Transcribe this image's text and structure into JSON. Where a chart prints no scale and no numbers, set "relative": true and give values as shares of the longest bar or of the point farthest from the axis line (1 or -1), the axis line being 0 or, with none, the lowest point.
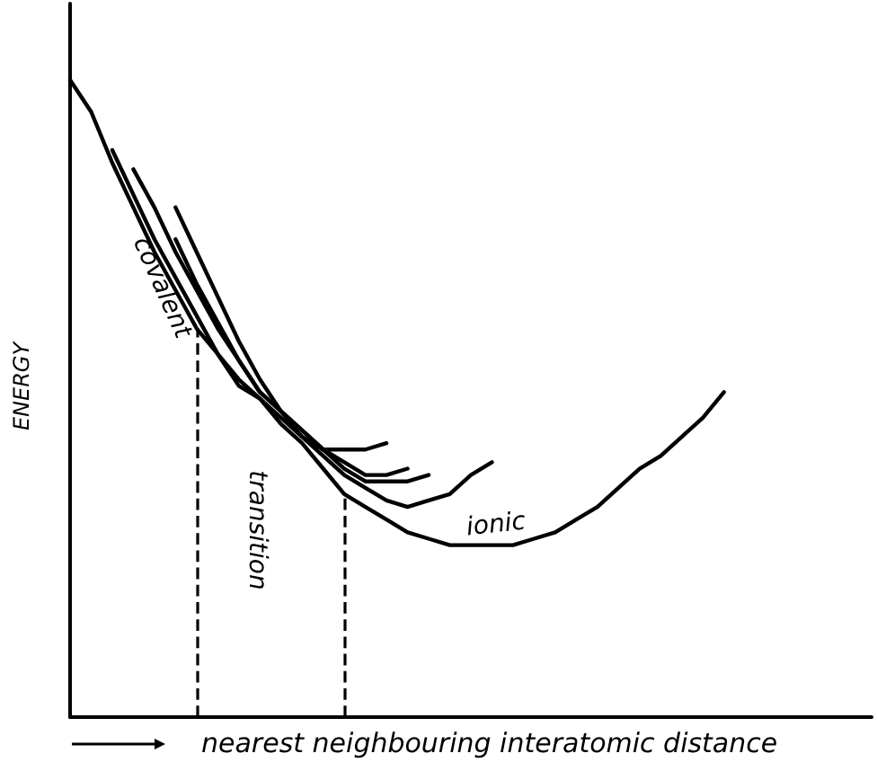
{
  "chart_data": {
    "type": "line",
    "relative": true,
    "xlabel": "nearest neighbouring interatomic distance",
    "ylabel": "ENERGY",
    "categories": [
      null,
      null,
      null,
      null,
      null,
      null,
      null,
      null,
      null,
      null,
      null,
      null,
      null,
      null,
      null,
      null,
      null,
      null,
      null,
      null,
      null,
      null,
      null,
      null,
      null,
      null,
      null,
      null,
      null,
      null,
      null,
      null,
      null,
      null,
      null,
      null,
      null,
      null,
      null
    ],
    "series": [
      {
        "color": "#000000",
        "values": [
          1.0,
          0.95,
          0.87,
          0.8,
          0.73,
          0.67,
          0.61,
          0.57,
          0.53,
          0.5,
          0.46,
          0.43,
          0.39,
          0.35,
          0.33,
          0.31,
          0.29,
          0.28,
          0.27,
          0.27,
          0.27,
          0.27,
          0.28,
          0.29,
          0.31,
          0.33,
          0.36,
          0.39,
          0.41,
          0.44,
          0.47,
          0.51,
          null,
          null,
          null,
          null,
          null,
          null,
          null
        ]
      },
      {
        "color": "#000000",
        "values": [
          null,
          null,
          0.89,
          0.82,
          0.75,
          0.69,
          0.63,
          0.57,
          0.52,
          0.5,
          0.47,
          0.44,
          0.41,
          0.38,
          0.36,
          0.34,
          0.33,
          0.34,
          0.35,
          0.38,
          0.4,
          null,
          null,
          null,
          null,
          null,
          null,
          null,
          null,
          null,
          null,
          null,
          null,
          null,
          null,
          null,
          null,
          null,
          null
        ]
      },
      {
        "color": "#000000",
        "values": [
          null,
          null,
          null,
          0.86,
          0.8,
          0.73,
          0.67,
          0.61,
          0.56,
          0.51,
          0.48,
          0.45,
          0.42,
          0.39,
          0.37,
          0.37,
          0.37,
          0.38,
          null,
          null,
          null,
          null,
          null,
          null,
          null,
          null,
          null,
          null,
          null,
          null,
          null,
          null,
          null,
          null,
          null,
          null,
          null,
          null,
          null
        ]
      },
      {
        "color": "#000000",
        "values": [
          null,
          null,
          null,
          null,
          null,
          0.75,
          0.68,
          0.62,
          0.56,
          0.51,
          0.48,
          0.44,
          0.42,
          0.4,
          0.38,
          0.38,
          0.39,
          null,
          null,
          null,
          null,
          null,
          null,
          null,
          null,
          null,
          null,
          null,
          null,
          null,
          null,
          null,
          null,
          null,
          null,
          null,
          null,
          null,
          null
        ]
      },
      {
        "color": "#000000",
        "values": [
          null,
          null,
          null,
          null,
          null,
          0.8,
          0.73,
          0.66,
          0.59,
          0.53,
          0.48,
          0.45,
          0.42,
          0.42,
          0.42,
          0.43,
          null,
          null,
          null,
          null,
          null,
          null,
          null,
          null,
          null,
          null,
          null,
          null,
          null,
          null,
          null,
          null,
          null,
          null,
          null,
          null,
          null,
          null,
          null
        ]
      }
    ],
    "annotations": [
      "covalent",
      "transition",
      "ionic"
    ]
  }
}
